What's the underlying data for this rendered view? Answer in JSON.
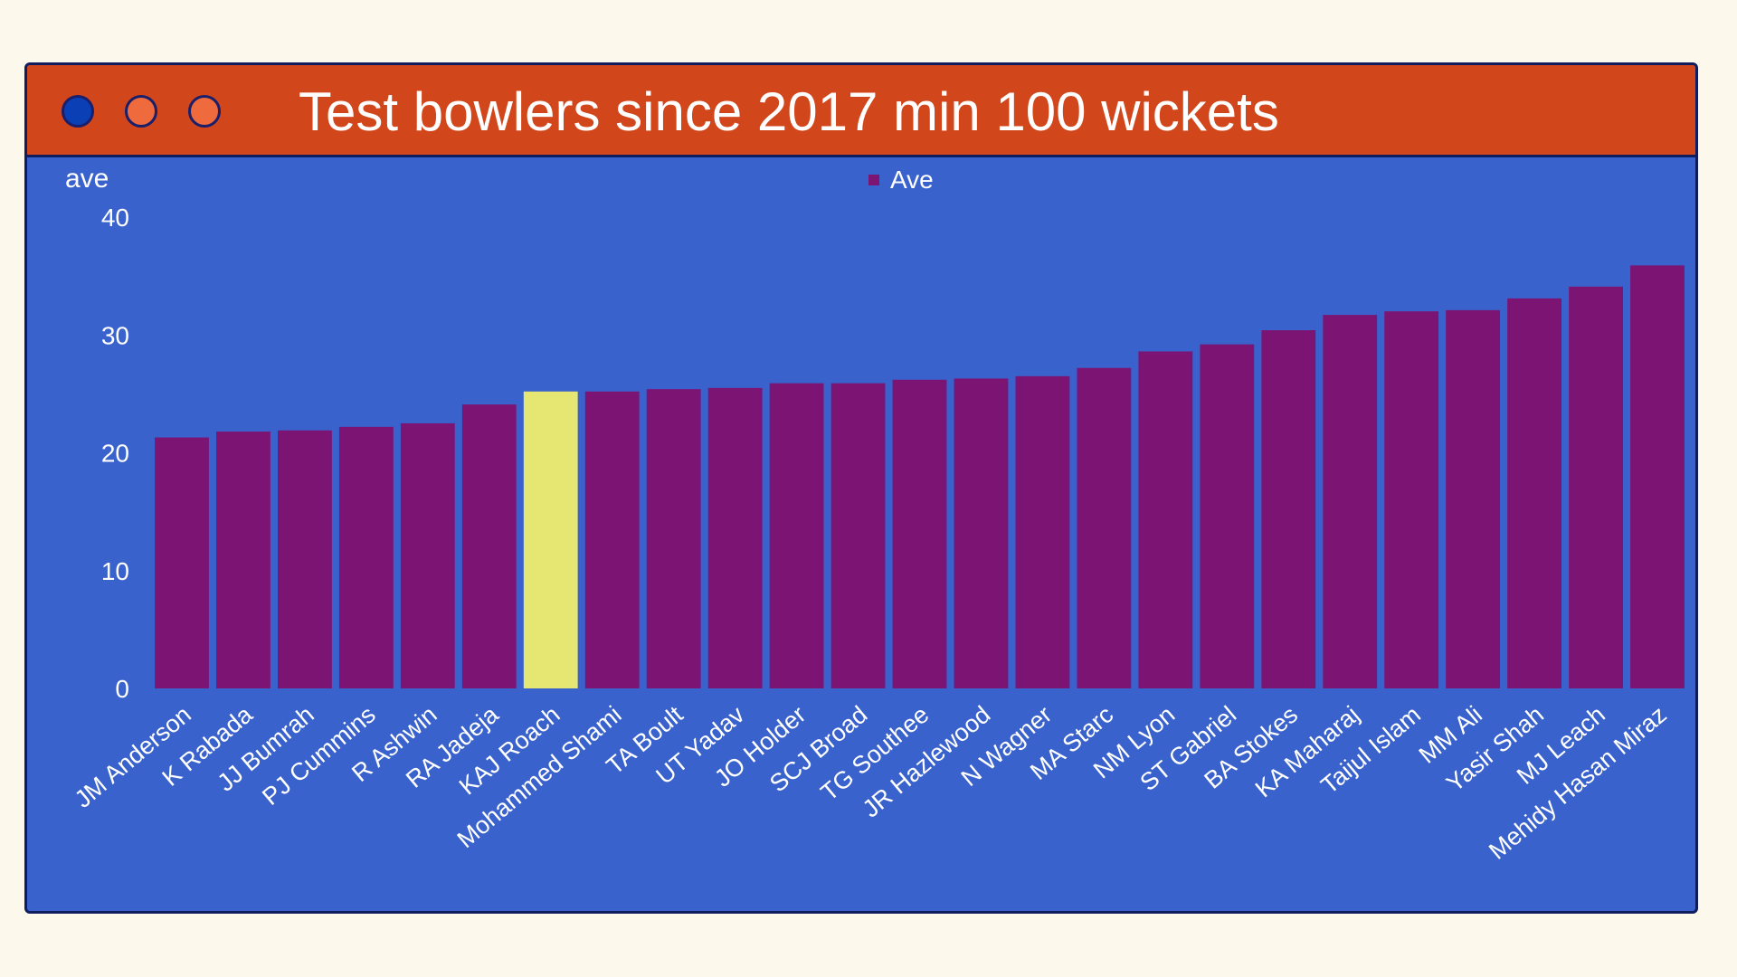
{
  "window": {
    "title": "Test bowlers since 2017 min 100 wickets",
    "controls": [
      {
        "name": "close",
        "color": "#0b3fb5"
      },
      {
        "name": "minimize",
        "color": "#ef6a3c"
      },
      {
        "name": "maximize",
        "color": "#ef6a3c"
      }
    ]
  },
  "colors": {
    "background": "#fdf8ec",
    "panel": "#3a62cc",
    "titlebar": "#d2461b",
    "bar": "#7c1473",
    "highlight": "#e6e673",
    "text": "#ffffff"
  },
  "chart_data": {
    "type": "bar",
    "ylabel": "ave",
    "xlabel": "",
    "ylim": [
      0,
      40
    ],
    "yticks": [
      0,
      10,
      20,
      30,
      40
    ],
    "legend": {
      "position": "top-center"
    },
    "grid": false,
    "categories": [
      "JM Anderson",
      "K Rabada",
      "JJ Bumrah",
      "PJ Cummins",
      "R Ashwin",
      "RA Jadeja",
      "KAJ Roach",
      "Mohammed Shami",
      "TA Boult",
      "UT Yadav",
      "JO Holder",
      "SCJ Broad",
      "TG Southee",
      "JR Hazlewood",
      "N Wagner",
      "MA Starc",
      "NM Lyon",
      "ST Gabriel",
      "BA Stokes",
      "KA Maharaj",
      "Taijul Islam",
      "MM Ali",
      "Yasir Shah",
      "MJ Leach",
      "Mehidy Hasan Miraz"
    ],
    "series": [
      {
        "name": "Ave",
        "values": [
          21.3,
          21.8,
          21.9,
          22.2,
          22.5,
          24.1,
          25.2,
          25.2,
          25.4,
          25.5,
          25.9,
          25.9,
          26.2,
          26.3,
          26.5,
          27.2,
          28.6,
          29.2,
          30.4,
          31.7,
          32.0,
          32.1,
          33.1,
          34.1,
          35.9
        ]
      }
    ],
    "highlight": "KAJ Roach"
  }
}
